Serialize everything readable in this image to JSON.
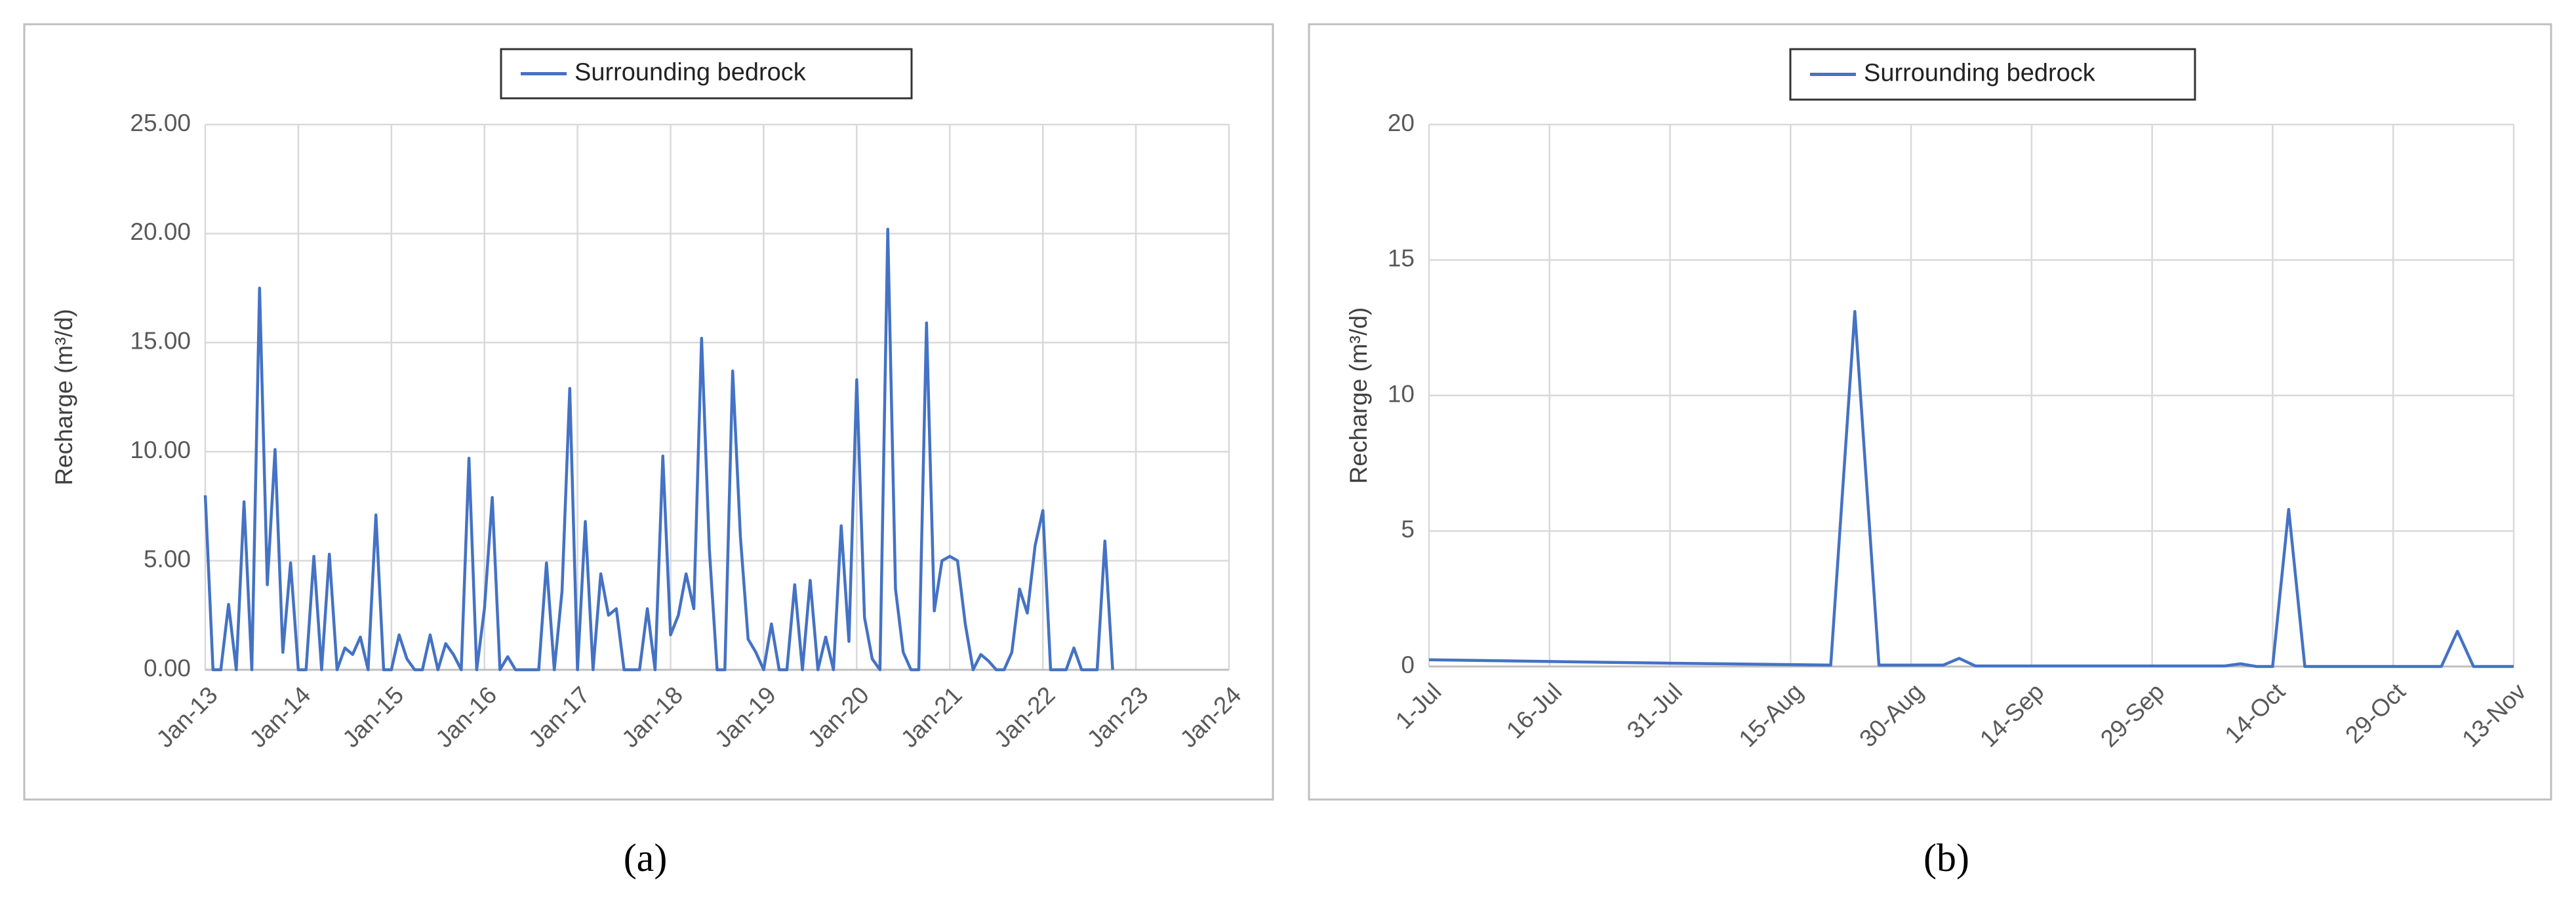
{
  "chart_data": [
    {
      "type": "line",
      "panel_label": "(a)",
      "y_label": "Recharge (m³/d)",
      "grid": true,
      "legend": "top",
      "x": [
        "2013-01",
        "2013-02",
        "2013-03",
        "2013-04",
        "2013-05",
        "2013-06",
        "2013-07",
        "2013-08",
        "2013-09",
        "2013-10",
        "2013-11",
        "2013-12",
        "2014-01",
        "2014-02",
        "2014-03",
        "2014-04",
        "2014-05",
        "2014-06",
        "2014-07",
        "2014-08",
        "2014-09",
        "2014-10",
        "2014-11",
        "2014-12",
        "2015-01",
        "2015-02",
        "2015-03",
        "2015-04",
        "2015-05",
        "2015-06",
        "2015-07",
        "2015-08",
        "2015-09",
        "2015-10",
        "2015-11",
        "2015-12",
        "2016-01",
        "2016-02",
        "2016-03",
        "2016-04",
        "2016-05",
        "2016-06",
        "2016-07",
        "2016-08",
        "2016-09",
        "2016-10",
        "2016-11",
        "2016-12",
        "2017-01",
        "2017-02",
        "2017-03",
        "2017-04",
        "2017-05",
        "2017-06",
        "2017-07",
        "2017-08",
        "2017-09",
        "2017-10",
        "2017-11",
        "2017-12",
        "2018-01",
        "2018-02",
        "2018-03",
        "2018-04",
        "2018-05",
        "2018-06",
        "2018-07",
        "2018-08",
        "2018-09",
        "2018-10",
        "2018-11",
        "2018-12",
        "2019-01",
        "2019-02",
        "2019-03",
        "2019-04",
        "2019-05",
        "2019-06",
        "2019-07",
        "2019-08",
        "2019-09",
        "2019-10",
        "2019-11",
        "2019-12",
        "2020-01",
        "2020-02",
        "2020-03",
        "2020-04",
        "2020-05",
        "2020-06",
        "2020-07",
        "2020-08",
        "2020-09",
        "2020-10",
        "2020-11",
        "2020-12",
        "2021-01",
        "2021-02",
        "2021-03",
        "2021-04",
        "2021-05",
        "2021-06",
        "2021-07",
        "2021-08",
        "2021-09",
        "2021-10",
        "2021-11",
        "2021-12",
        "2022-01",
        "2022-02",
        "2022-03",
        "2022-04",
        "2022-05",
        "2022-06",
        "2022-07",
        "2022-08",
        "2022-09",
        "2022-10"
      ],
      "series": [
        {
          "name": "Surrounding bedrock",
          "color": "#4472c4",
          "values": [
            8.0,
            0,
            0,
            3.0,
            0,
            7.7,
            0,
            17.5,
            3.9,
            10.1,
            0.8,
            4.9,
            0,
            0,
            5.2,
            0,
            5.3,
            0,
            1.0,
            0.7,
            1.5,
            0,
            7.1,
            0,
            0,
            1.6,
            0.5,
            0,
            0,
            1.6,
            0,
            1.2,
            0.7,
            0,
            9.7,
            0,
            2.8,
            7.9,
            0,
            0.6,
            0,
            0,
            0,
            0,
            4.9,
            0,
            3.6,
            12.9,
            0,
            6.8,
            0,
            4.4,
            2.5,
            2.8,
            0,
            0,
            0,
            2.8,
            0,
            9.8,
            1.6,
            2.5,
            4.4,
            2.8,
            15.2,
            5.5,
            0,
            0,
            13.7,
            6.1,
            1.4,
            0.8,
            0,
            2.1,
            0,
            0,
            3.9,
            0,
            4.1,
            0,
            1.5,
            0,
            6.6,
            1.3,
            13.3,
            2.4,
            0.5,
            0,
            20.2,
            3.7,
            0.8,
            0,
            0,
            15.9,
            2.7,
            5.0,
            5.2,
            5.0,
            2.1,
            0,
            0.7,
            0.4,
            0,
            0,
            0.8,
            3.7,
            2.6,
            5.7,
            7.3,
            0,
            0,
            0,
            1.0,
            0,
            0,
            0,
            5.9,
            0
          ]
        }
      ],
      "xlim": [
        "2013-01",
        "2024-01"
      ],
      "xticks": [
        {
          "value": "2013-01",
          "label": "Jan-13"
        },
        {
          "value": "2014-01",
          "label": "Jan-14"
        },
        {
          "value": "2015-01",
          "label": "Jan-15"
        },
        {
          "value": "2016-01",
          "label": "Jan-16"
        },
        {
          "value": "2017-01",
          "label": "Jan-17"
        },
        {
          "value": "2018-01",
          "label": "Jan-18"
        },
        {
          "value": "2019-01",
          "label": "Jan-19"
        },
        {
          "value": "2020-01",
          "label": "Jan-20"
        },
        {
          "value": "2021-01",
          "label": "Jan-21"
        },
        {
          "value": "2022-01",
          "label": "Jan-22"
        },
        {
          "value": "2023-01",
          "label": "Jan-23"
        },
        {
          "value": "2024-01",
          "label": "Jan-24"
        }
      ],
      "ylim": [
        0,
        25
      ],
      "yticks": [
        {
          "value": 0,
          "label": "0.00"
        },
        {
          "value": 5,
          "label": "5.00"
        },
        {
          "value": 10,
          "label": "10.00"
        },
        {
          "value": 15,
          "label": "15.00"
        },
        {
          "value": 20,
          "label": "20.00"
        },
        {
          "value": 25,
          "label": "25.00"
        }
      ]
    },
    {
      "type": "line",
      "panel_label": "(b)",
      "y_label": "Recharge (m³/d)",
      "grid": true,
      "legend": "top",
      "x": [
        "07-01",
        "07-31",
        "08-20",
        "08-23",
        "08-26",
        "09-03",
        "09-05",
        "09-07",
        "10-08",
        "10-10",
        "10-12",
        "10-14",
        "10-16",
        "10-18",
        "11-04",
        "11-06",
        "11-08",
        "11-13"
      ],
      "series": [
        {
          "name": "Surrounding bedrock",
          "color": "#4472c4",
          "values": [
            0.25,
            0.12,
            0.05,
            13.1,
            0.05,
            0.05,
            0.3,
            0.02,
            0.02,
            0.1,
            0,
            0,
            5.8,
            0,
            0,
            1.3,
            0,
            0
          ]
        }
      ],
      "xlim": [
        "07-01",
        "11-13"
      ],
      "xticks": [
        {
          "value": "07-01",
          "label": "1-Jul"
        },
        {
          "value": "07-16",
          "label": "16-Jul"
        },
        {
          "value": "07-31",
          "label": "31-Jul"
        },
        {
          "value": "08-15",
          "label": "15-Aug"
        },
        {
          "value": "08-30",
          "label": "30-Aug"
        },
        {
          "value": "09-14",
          "label": "14-Sep"
        },
        {
          "value": "09-29",
          "label": "29-Sep"
        },
        {
          "value": "10-14",
          "label": "14-Oct"
        },
        {
          "value": "10-29",
          "label": "29-Oct"
        },
        {
          "value": "11-13",
          "label": "13-Nov"
        }
      ],
      "ylim": [
        0,
        20
      ],
      "yticks": [
        0,
        5,
        10,
        15,
        20
      ]
    }
  ]
}
